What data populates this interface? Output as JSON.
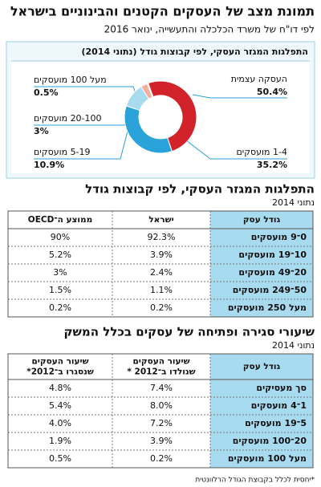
{
  "header": {
    "title": "תמונת מצב של העסקים הקטנים והבינוניים בישראל",
    "subtitle": "לפי דו\"ח של משרד הכלכלה והתעשייה, ינואר 2016"
  },
  "chart_data": {
    "type": "pie",
    "title": "התפלגות המגזר העסקי, לפי קבוצות גודל (נתוני 2014)",
    "categories": [
      "העסקה עצמית",
      "1-4 מועסקים",
      "5-19 מועסקים",
      "20-100 מועסקים",
      "מעל 100 מועסקים"
    ],
    "values": [
      50.4,
      35.2,
      10.9,
      3,
      0.5
    ],
    "value_labels": [
      "50.4%",
      "35.2%",
      "10.9%",
      "3%",
      "0.5%"
    ],
    "colors": [
      "#d2232a",
      "#2aa2da",
      "#a9dbf0",
      "#f2ad9c",
      "#f7dcd3"
    ]
  },
  "table1": {
    "title": "התפלגות המגזר העסקי, לפי קבוצות גודל",
    "subtitle": "נתוני 2014",
    "columns": [
      [
        "גודל עסק"
      ],
      [
        "ישראל"
      ],
      [
        "ממוצע ה־OECD"
      ]
    ],
    "rows": [
      [
        "0־9 מועסקים",
        "92.3%",
        "90%"
      ],
      [
        "10־19 מועסקים",
        "3.9%",
        "5.2%"
      ],
      [
        "20־49 מועסקים",
        "2.4%",
        "3%"
      ],
      [
        "50־249 מועסקים",
        "1.1%",
        "1.5%"
      ],
      [
        "מעל 250 מועסקים",
        "0.2%",
        "0.2%"
      ]
    ]
  },
  "table2": {
    "title": "שיעורי סגירה ופתיחה של עסקים בכלל המשק",
    "subtitle": "נתוני 2014",
    "columns": [
      [
        "גודל עסק"
      ],
      [
        "שיעור העסקים",
        "שנולדו ב־2012 *"
      ],
      [
        "שיעור העסקים",
        "שנסגרו ב־2012*"
      ]
    ],
    "rows": [
      [
        "סך מעסיקים",
        "7.4%",
        "4.8%"
      ],
      [
        "1־4 מועסקים",
        "8.0%",
        "5.4%"
      ],
      [
        "5־19 מועסקים",
        "7.2%",
        "4.0%"
      ],
      [
        "20־100 מועסקים",
        "3.9%",
        "1.9%"
      ],
      [
        "מעל 100 מועסקים",
        "0.2%",
        "0.5%"
      ]
    ]
  },
  "footnote": "*יחסית לכלל בקבוצת הגודל הרלוונטית"
}
